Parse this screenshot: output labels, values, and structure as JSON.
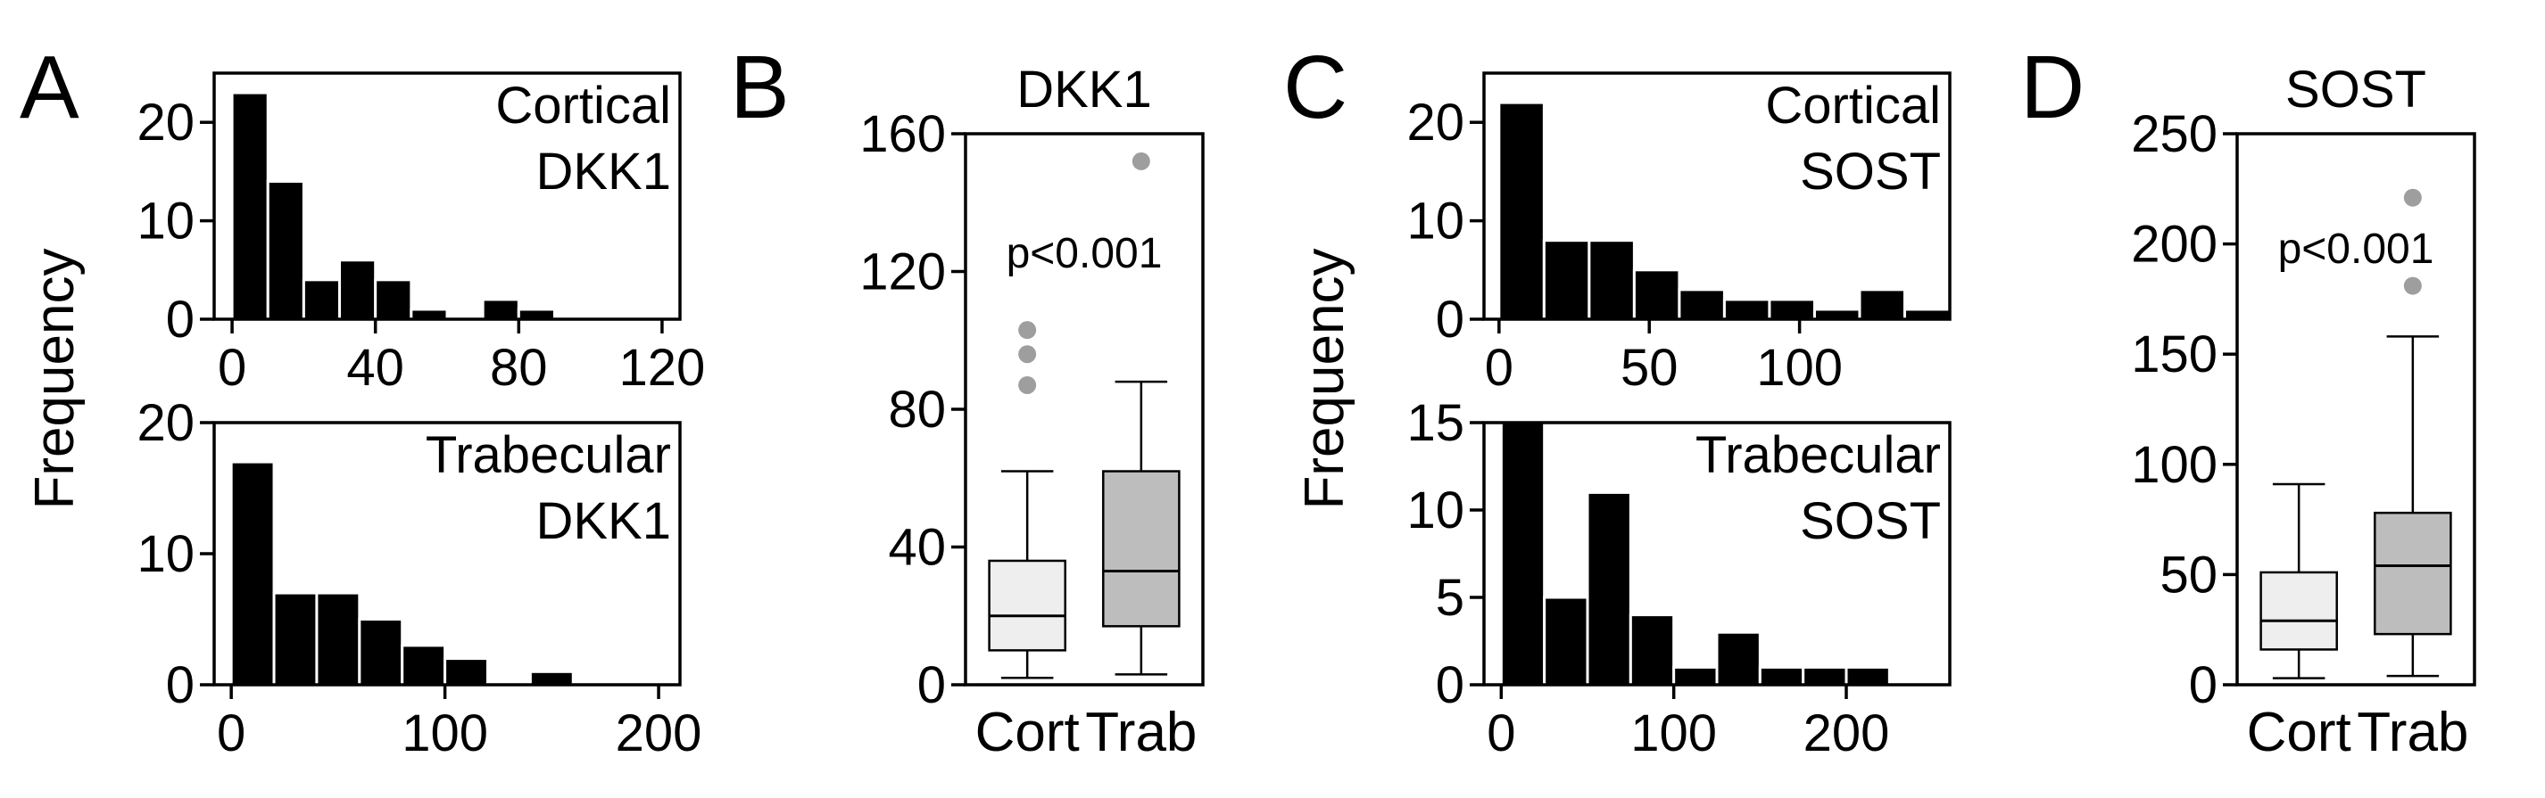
{
  "chart_data": [
    {
      "id": "A_top",
      "type": "bar",
      "panel_letter": "A",
      "title_lines": [
        "Cortical",
        "DKK1"
      ],
      "ylabel": "Frequency",
      "bin_width": 10,
      "bin_start": 0,
      "values": [
        23,
        14,
        4,
        6,
        4,
        1,
        0,
        2,
        1,
        0,
        0
      ],
      "xlim": [
        -5,
        125
      ],
      "ylim": [
        0,
        25
      ],
      "xticks": [
        0,
        40,
        80,
        120
      ],
      "yticks": [
        0,
        10,
        20
      ]
    },
    {
      "id": "A_bottom",
      "type": "bar",
      "title_lines": [
        "Trabecular",
        "DKK1"
      ],
      "bin_width": 20,
      "bin_start": 0,
      "values": [
        17,
        7,
        7,
        5,
        3,
        2,
        0,
        1,
        0,
        0
      ],
      "xlim": [
        -8,
        210
      ],
      "ylim": [
        0,
        20
      ],
      "xticks": [
        0,
        100,
        200
      ],
      "yticks": [
        0,
        10,
        20
      ]
    },
    {
      "id": "B",
      "type": "box",
      "panel_letter": "B",
      "title": "DKK1",
      "annotation": "p<0.001",
      "categories": [
        "Cort",
        "Trab"
      ],
      "ylim": [
        0,
        160
      ],
      "yticks": [
        0,
        40,
        80,
        120,
        160
      ],
      "boxes": [
        {
          "name": "Cort",
          "whisker_low": 2,
          "q1": 10,
          "median": 20,
          "q3": 36,
          "whisker_high": 62,
          "outliers": [
            87,
            96,
            103
          ],
          "color": "#eeeeee"
        },
        {
          "name": "Trab",
          "whisker_low": 3,
          "q1": 17,
          "median": 33,
          "q3": 62,
          "whisker_high": 88,
          "outliers": [
            152
          ],
          "color": "#bdbdbd"
        }
      ]
    },
    {
      "id": "C_top",
      "type": "bar",
      "panel_letter": "C",
      "title_lines": [
        "Cortical",
        "SOST"
      ],
      "ylabel": "Frequency",
      "bin_width": 15,
      "bin_start": 0,
      "values": [
        22,
        8,
        8,
        5,
        3,
        2,
        2,
        1,
        3,
        1
      ],
      "xlim": [
        -5,
        150
      ],
      "ylim": [
        0,
        25
      ],
      "xticks": [
        0,
        50,
        100
      ],
      "yticks": [
        0,
        10,
        20
      ]
    },
    {
      "id": "C_bottom",
      "type": "bar",
      "title_lines": [
        "Trabecular",
        "SOST"
      ],
      "bin_width": 25,
      "bin_start": 0,
      "values": [
        15,
        5,
        11,
        4,
        1,
        3,
        1,
        1,
        1
      ],
      "xlim": [
        -10,
        260
      ],
      "ylim": [
        0,
        15
      ],
      "xticks": [
        0,
        100,
        200
      ],
      "yticks": [
        0,
        5,
        10,
        15
      ]
    },
    {
      "id": "D",
      "type": "box",
      "panel_letter": "D",
      "title": "SOST",
      "annotation": "p<0.001",
      "categories": [
        "Cort",
        "Trab"
      ],
      "ylim": [
        0,
        250
      ],
      "yticks": [
        0,
        50,
        100,
        150,
        200,
        250
      ],
      "boxes": [
        {
          "name": "Cort",
          "whisker_low": 3,
          "q1": 16,
          "median": 29,
          "q3": 51,
          "whisker_high": 91,
          "outliers": [],
          "color": "#eeeeee"
        },
        {
          "name": "Trab",
          "whisker_low": 4,
          "q1": 23,
          "median": 54,
          "q3": 78,
          "whisker_high": 158,
          "outliers": [
            181,
            221
          ],
          "color": "#bdbdbd"
        }
      ]
    }
  ]
}
